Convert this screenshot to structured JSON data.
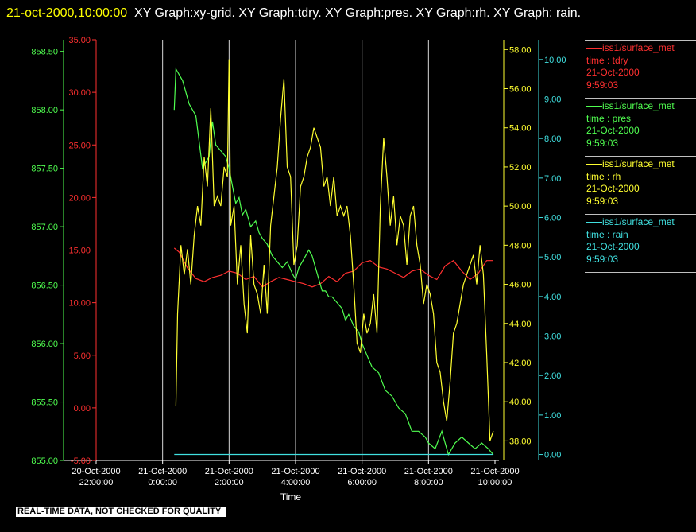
{
  "header": {
    "timestamp": "21-oct-2000,10:00:00",
    "title": "XY Graph:xy-grid.  XY Graph:tdry.  XY Graph:pres.  XY Graph:rh.  XY Graph: rain."
  },
  "notice": "REAL-TIME DATA, NOT CHECKED FOR QUALITY",
  "legend": [
    {
      "source": "iss1/surface_met",
      "field": "time : tdry",
      "date": "21-Oct-2000",
      "time": "9:59:03",
      "color": "#ff3030"
    },
    {
      "source": "iss1/surface_met",
      "field": "time : pres",
      "date": "21-Oct-2000",
      "time": "9:59:03",
      "color": "#50ff50"
    },
    {
      "source": "iss1/surface_met",
      "field": "time : rh",
      "date": "21-Oct-2000",
      "time": "9:59:03",
      "color": "#ffff30"
    },
    {
      "source": "iss1/surface_met",
      "field": "time : rain",
      "date": "21-Oct-2000",
      "time": "9:59:03",
      "color": "#40e0e0"
    }
  ],
  "chart_data": {
    "type": "line",
    "xlabel": "Time",
    "x_ticks": [
      {
        "date": "20-Oct-2000",
        "time": "22:00:00"
      },
      {
        "date": "21-Oct-2000",
        "time": "0:00:00"
      },
      {
        "date": "21-Oct-2000",
        "time": "2:00:00"
      },
      {
        "date": "21-Oct-2000",
        "time": "4:00:00"
      },
      {
        "date": "21-Oct-2000",
        "time": "6:00:00"
      },
      {
        "date": "21-Oct-2000",
        "time": "8:00:00"
      },
      {
        "date": "21-Oct-2000",
        "time": "10:00:00"
      }
    ],
    "xlim_hours": [
      -2,
      10
    ],
    "axes": {
      "pres": {
        "ticks": [
          "855.00",
          "855.50",
          "856.00",
          "856.50",
          "857.00",
          "857.50",
          "858.00",
          "858.50"
        ],
        "ylim": [
          855.0,
          858.6
        ],
        "color": "#50ff50"
      },
      "tdry": {
        "ticks": [
          "-5.00",
          "0.00",
          "5.00",
          "10.00",
          "15.00",
          "20.00",
          "25.00",
          "30.00",
          "35.00"
        ],
        "ylim": [
          -5,
          35
        ],
        "color": "#ff3030"
      },
      "rh": {
        "ticks": [
          "38.00",
          "40.00",
          "42.00",
          "44.00",
          "46.00",
          "48.00",
          "50.00",
          "52.00",
          "54.00",
          "56.00",
          "58.00"
        ],
        "ylim": [
          37.0,
          58.5
        ],
        "color": "#ffff30"
      },
      "rain": {
        "ticks": [
          "0.00",
          "1.00",
          "2.00",
          "3.00",
          "4.00",
          "5.00",
          "6.00",
          "7.00",
          "8.00",
          "9.00",
          "10.00"
        ],
        "ylim": [
          -0.15,
          10.5
        ],
        "color": "#40e0e0"
      }
    },
    "series": [
      {
        "name": "time : tdry",
        "axis": "tdry",
        "color": "#ff3030",
        "x": [
          0.35,
          0.5,
          0.75,
          1.0,
          1.25,
          1.5,
          1.75,
          2.0,
          2.25,
          2.5,
          2.75,
          3.0,
          3.25,
          3.5,
          3.75,
          4.0,
          4.25,
          4.5,
          4.75,
          5.0,
          5.25,
          5.5,
          5.75,
          6.0,
          6.25,
          6.5,
          6.75,
          7.0,
          7.25,
          7.5,
          7.75,
          8.0,
          8.25,
          8.5,
          8.75,
          9.0,
          9.25,
          9.5,
          9.75,
          9.95
        ],
        "y": [
          15.2,
          14.8,
          13.3,
          12.3,
          12.0,
          12.4,
          12.6,
          13.0,
          12.8,
          12.2,
          12.5,
          11.5,
          12.0,
          12.4,
          12.2,
          12.0,
          11.8,
          11.5,
          11.8,
          12.5,
          12.0,
          12.8,
          13.0,
          13.8,
          14.0,
          13.4,
          13.2,
          12.8,
          12.4,
          13.0,
          13.2,
          12.6,
          12.2,
          13.5,
          14.0,
          13.0,
          12.2,
          12.8,
          14.0,
          14.0
        ]
      },
      {
        "name": "time : pres",
        "axis": "pres",
        "color": "#50ff50",
        "x": [
          0.35,
          0.4,
          0.6,
          0.8,
          1.0,
          1.2,
          1.4,
          1.5,
          1.6,
          1.75,
          1.9,
          2.0,
          2.1,
          2.2,
          2.3,
          2.4,
          2.5,
          2.65,
          2.8,
          2.9,
          3.0,
          3.15,
          3.3,
          3.45,
          3.6,
          3.75,
          3.9,
          4.0,
          4.1,
          4.2,
          4.3,
          4.4,
          4.5,
          4.65,
          4.8,
          4.9,
          5.0,
          5.1,
          5.25,
          5.4,
          5.5,
          5.6,
          5.75,
          5.9,
          6.0,
          6.15,
          6.3,
          6.5,
          6.7,
          6.9,
          7.1,
          7.3,
          7.5,
          7.7,
          7.9,
          8.0,
          8.2,
          8.4,
          8.6,
          8.8,
          9.0,
          9.2,
          9.4,
          9.6,
          9.8,
          9.95
        ],
        "y": [
          858.0,
          858.35,
          858.25,
          858.05,
          857.95,
          857.5,
          857.6,
          857.9,
          857.7,
          857.65,
          857.6,
          857.5,
          857.35,
          857.2,
          857.25,
          857.1,
          857.15,
          857.0,
          857.05,
          856.95,
          856.9,
          856.85,
          856.75,
          856.7,
          856.65,
          856.7,
          856.6,
          856.55,
          856.65,
          856.7,
          856.75,
          856.8,
          856.75,
          856.6,
          856.45,
          856.45,
          856.4,
          856.4,
          856.35,
          856.3,
          856.2,
          856.25,
          856.15,
          856.1,
          856.0,
          855.9,
          855.8,
          855.75,
          855.6,
          855.55,
          855.45,
          855.4,
          855.25,
          855.25,
          855.2,
          855.15,
          855.1,
          855.25,
          855.05,
          855.15,
          855.2,
          855.15,
          855.1,
          855.15,
          855.1,
          855.05
        ]
      },
      {
        "name": "time : rh",
        "axis": "rh",
        "color": "#ffff30",
        "x": [
          0.4,
          0.45,
          0.55,
          0.65,
          0.75,
          0.85,
          0.95,
          1.05,
          1.15,
          1.25,
          1.35,
          1.45,
          1.55,
          1.65,
          1.75,
          1.85,
          1.95,
          2.0,
          2.05,
          2.15,
          2.25,
          2.35,
          2.45,
          2.55,
          2.65,
          2.75,
          2.85,
          2.95,
          3.05,
          3.15,
          3.25,
          3.35,
          3.45,
          3.55,
          3.65,
          3.75,
          3.85,
          3.95,
          4.05,
          4.15,
          4.25,
          4.35,
          4.45,
          4.55,
          4.65,
          4.75,
          4.85,
          4.95,
          5.05,
          5.15,
          5.25,
          5.35,
          5.45,
          5.55,
          5.65,
          5.75,
          5.85,
          5.95,
          6.05,
          6.15,
          6.25,
          6.35,
          6.45,
          6.55,
          6.65,
          6.75,
          6.85,
          6.95,
          7.05,
          7.15,
          7.25,
          7.35,
          7.45,
          7.55,
          7.65,
          7.75,
          7.85,
          7.95,
          8.05,
          8.15,
          8.25,
          8.35,
          8.45,
          8.55,
          8.65,
          8.75,
          8.85,
          8.95,
          9.05,
          9.15,
          9.25,
          9.35,
          9.45,
          9.55,
          9.65,
          9.75,
          9.85,
          9.95
        ],
        "y": [
          39.8,
          44.5,
          48.0,
          46.5,
          47.8,
          46.0,
          48.5,
          50.0,
          49.0,
          52.5,
          51.0,
          55.0,
          50.0,
          50.5,
          50.0,
          52.0,
          51.5,
          57.5,
          49.0,
          50.0,
          46.0,
          48.0,
          45.0,
          43.5,
          48.5,
          46.0,
          45.5,
          44.5,
          47.0,
          44.5,
          49.0,
          50.5,
          52.0,
          54.5,
          56.5,
          52.0,
          51.5,
          47.0,
          48.0,
          51.0,
          51.5,
          52.5,
          53.0,
          54.0,
          53.5,
          53.0,
          51.0,
          51.5,
          50.0,
          51.5,
          49.5,
          50.0,
          49.5,
          50.0,
          48.5,
          46.0,
          43.0,
          42.5,
          44.5,
          43.5,
          44.0,
          45.5,
          43.5,
          50.0,
          53.5,
          51.5,
          49.0,
          50.5,
          48.0,
          49.5,
          49.0,
          47.0,
          49.5,
          50.0,
          48.0,
          47.0,
          45.0,
          46.0,
          45.5,
          44.5,
          42.0,
          41.5,
          40.0,
          39.0,
          41.0,
          43.5,
          44.0,
          45.0,
          46.0,
          46.5,
          47.0,
          47.5,
          46.0,
          48.0,
          46.5,
          42.5,
          38.0,
          38.5
        ]
      },
      {
        "name": "time : rain",
        "axis": "rain",
        "color": "#40e0e0",
        "x": [
          0.35,
          9.95
        ],
        "y": [
          0.0,
          0.0
        ]
      }
    ]
  }
}
